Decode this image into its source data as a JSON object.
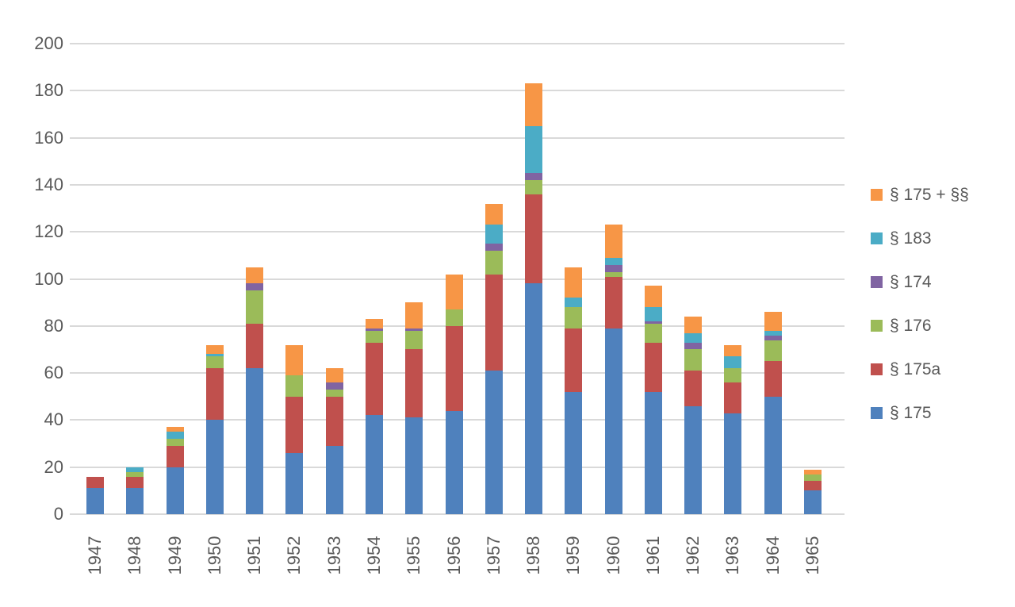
{
  "chart_data": {
    "type": "bar",
    "stacked": true,
    "title": "",
    "xlabel": "",
    "ylabel": "",
    "categories": [
      "1947",
      "1948",
      "1949",
      "1950",
      "1951",
      "1952",
      "1953",
      "1954",
      "1955",
      "1956",
      "1957",
      "1958",
      "1959",
      "1960",
      "1961",
      "1962",
      "1963",
      "1964",
      "1965"
    ],
    "series": [
      {
        "name": "§ 175",
        "color": "#4f81bd",
        "values": [
          11,
          11,
          20,
          40,
          62,
          26,
          29,
          42,
          41,
          44,
          61,
          98,
          52,
          79,
          52,
          46,
          43,
          50,
          10
        ]
      },
      {
        "name": "§ 175a",
        "color": "#c0504d",
        "values": [
          5,
          5,
          9,
          22,
          19,
          24,
          21,
          31,
          29,
          36,
          41,
          38,
          27,
          22,
          21,
          15,
          13,
          15,
          4
        ]
      },
      {
        "name": "§ 176",
        "color": "#9bbb59",
        "values": [
          0,
          2,
          3,
          5,
          14,
          9,
          3,
          5,
          8,
          7,
          10,
          6,
          9,
          2,
          8,
          9,
          6,
          9,
          3
        ]
      },
      {
        "name": "§ 174",
        "color": "#8064a2",
        "values": [
          0,
          0,
          0,
          0,
          3,
          0,
          3,
          1,
          1,
          0,
          3,
          3,
          0,
          3,
          1,
          3,
          0,
          2,
          0
        ]
      },
      {
        "name": "§ 183",
        "color": "#4bacc6",
        "values": [
          0,
          2,
          3,
          1,
          0,
          0,
          0,
          0,
          0,
          0,
          8,
          20,
          4,
          3,
          6,
          4,
          5,
          2,
          0
        ]
      },
      {
        "name": "§ 175 + §§",
        "color": "#f79646",
        "values": [
          0,
          0,
          2,
          4,
          7,
          13,
          6,
          4,
          11,
          15,
          9,
          18,
          13,
          14,
          9,
          7,
          5,
          8,
          2
        ]
      }
    ],
    "totals": [
      16,
      20,
      37,
      72,
      105,
      72,
      62,
      83,
      90,
      102,
      132,
      183,
      105,
      123,
      97,
      84,
      72,
      86,
      19
    ],
    "legend_order_top_to_bottom": [
      "§ 175 + §§",
      "§ 183",
      "§ 174",
      "§ 176",
      "§ 175a",
      "§ 175"
    ],
    "legend_position": "right",
    "grid": "horizontal",
    "ylim": [
      0,
      200
    ],
    "yticks": [
      0,
      20,
      40,
      60,
      80,
      100,
      120,
      140,
      160,
      180,
      200
    ]
  },
  "colors": {
    "background": "#ffffff",
    "gridline": "#d9d9d9",
    "axis_text": "#595959"
  }
}
